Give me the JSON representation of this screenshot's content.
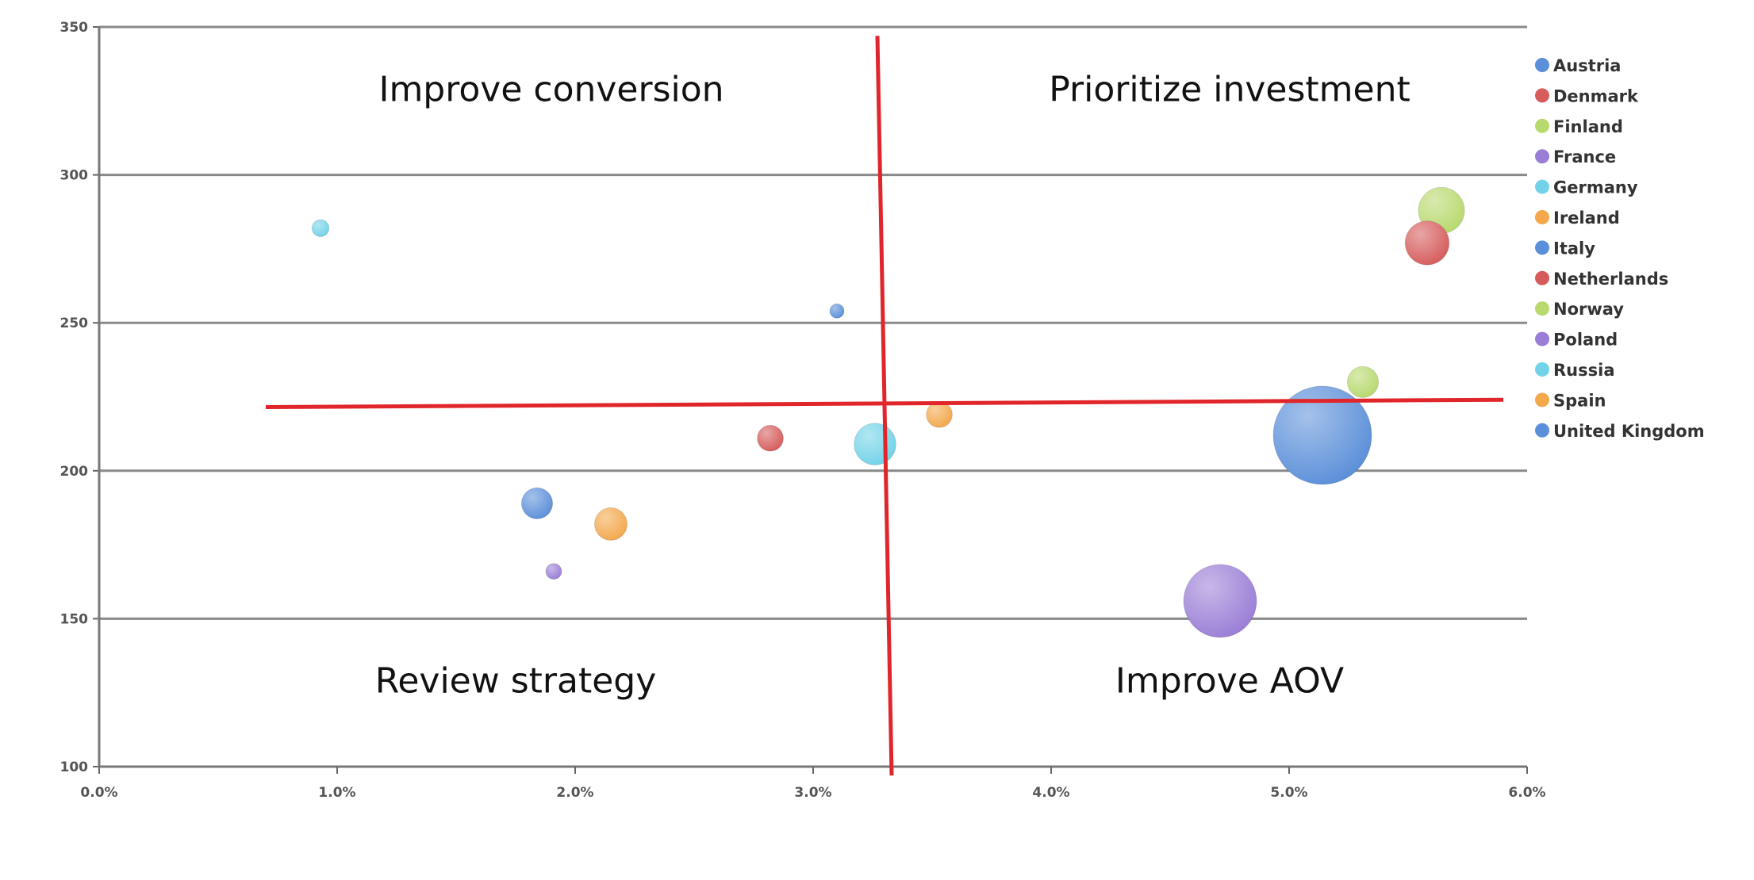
{
  "chart_data": {
    "type": "scatter",
    "subtype": "bubble",
    "title": "",
    "xlabel": "",
    "ylabel": "",
    "xlim": [
      0,
      6
    ],
    "ylim": [
      100,
      350
    ],
    "x_ticks": [
      0,
      1,
      2,
      3,
      4,
      5,
      6
    ],
    "x_tick_labels": [
      "0.0%",
      "1.0%",
      "2.0%",
      "3.0%",
      "4.0%",
      "5.0%",
      "6.0%"
    ],
    "y_ticks": [
      100,
      150,
      200,
      250,
      300,
      350
    ],
    "y_tick_labels": [
      "100",
      "150",
      "200",
      "250",
      "300",
      "350"
    ],
    "grid": "horizontal",
    "legend_position": "right",
    "series": [
      {
        "name": "Austria",
        "color": "#5b8fd9",
        "x": 3.1,
        "y": 254,
        "size": 2.1
      },
      {
        "name": "Denmark",
        "color": "#d65c5c",
        "x": 2.82,
        "y": 211,
        "size": 7
      },
      {
        "name": "Finland",
        "color": "#b8d96e",
        "x": 5.31,
        "y": 230,
        "size": 10
      },
      {
        "name": "France",
        "color": "#9a7ed6",
        "x": 4.71,
        "y": 156,
        "size": 55
      },
      {
        "name": "Germany",
        "color": "#72d3e8",
        "x": 3.26,
        "y": 209,
        "size": 18
      },
      {
        "name": "Ireland",
        "color": "#f3a84c",
        "x": 3.53,
        "y": 219,
        "size": 7
      },
      {
        "name": "Italy",
        "color": "#5b8fd9",
        "x": 1.84,
        "y": 189,
        "size": 10
      },
      {
        "name": "Netherlands",
        "color": "#d65c5c",
        "x": 5.58,
        "y": 277,
        "size": 20
      },
      {
        "name": "Norway",
        "color": "#b8d96e",
        "x": 5.64,
        "y": 288,
        "size": 22
      },
      {
        "name": "Poland",
        "color": "#9a7ed6",
        "x": 1.91,
        "y": 166,
        "size": 2.6
      },
      {
        "name": "Russia",
        "color": "#72d3e8",
        "x": 0.93,
        "y": 282,
        "size": 3
      },
      {
        "name": "Spain",
        "color": "#f3a84c",
        "x": 2.15,
        "y": 182,
        "size": 11
      },
      {
        "name": "United Kingdom",
        "color": "#5b8fd9",
        "x": 5.14,
        "y": 212,
        "size": 100
      }
    ],
    "annotations": {
      "line_color": "#e0262a",
      "horizontal_divider": {
        "x1": 0.7,
        "y1": 221.5,
        "x2": 5.9,
        "y2": 224
      },
      "vertical_divider": {
        "x1": 3.27,
        "y1": 347,
        "x2": 3.33,
        "y2": 97
      },
      "quadrants": [
        {
          "label": "Improve conversion",
          "x": 1.9,
          "y": 325
        },
        {
          "label": "Prioritize investment",
          "x": 4.75,
          "y": 325
        },
        {
          "label": "Review strategy",
          "x": 1.75,
          "y": 125
        },
        {
          "label": "Improve AOV",
          "x": 4.75,
          "y": 125
        }
      ]
    }
  }
}
